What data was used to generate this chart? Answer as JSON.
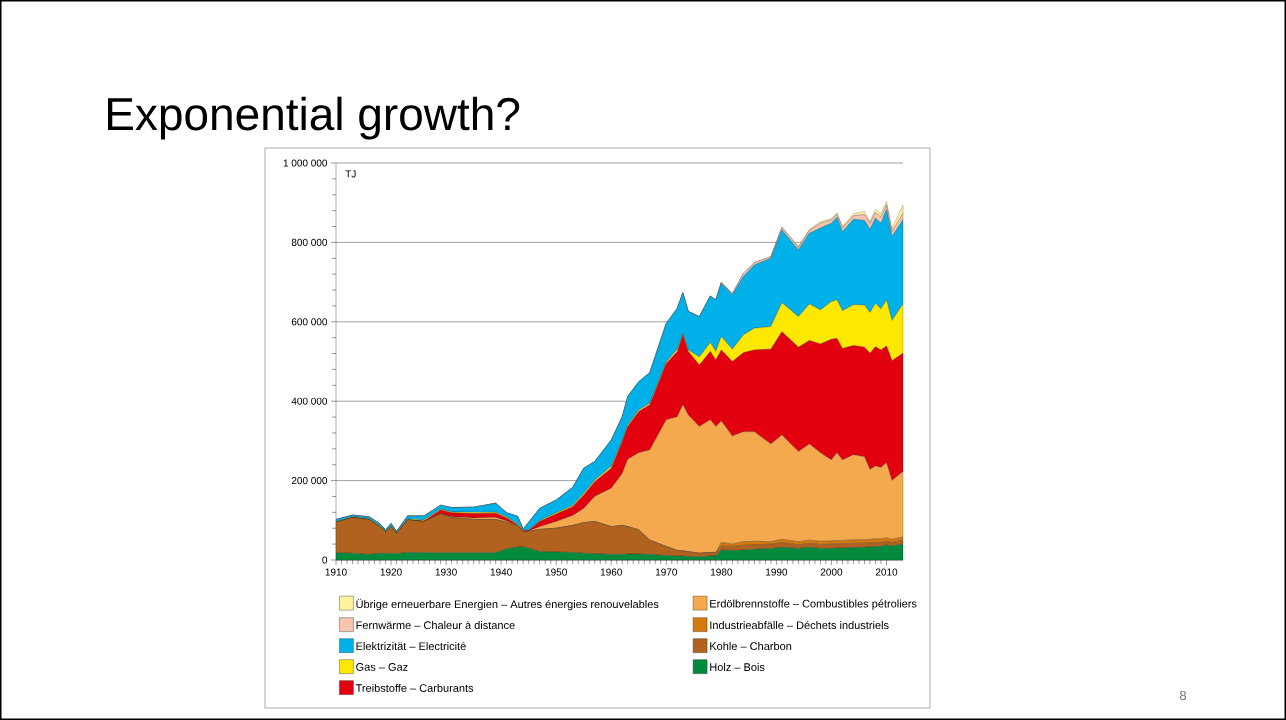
{
  "chart_data": {
    "type": "area",
    "title": "Exponential growth?",
    "ylabel": "TJ",
    "stacked": true,
    "grid": "y",
    "legend": "bottom",
    "annotations": [
      "8"
    ],
    "xlim": [
      1910,
      2013
    ],
    "ylim": [
      0,
      1000000
    ],
    "xticks": [
      1910,
      1920,
      1930,
      1940,
      1950,
      1960,
      1970,
      1980,
      1990,
      2000,
      2010
    ],
    "yticks": [
      0,
      {
        "value": 200000,
        "label": "200 000"
      },
      {
        "value": 400000,
        "label": "400 000"
      },
      {
        "value": 600000,
        "label": "600 000"
      },
      {
        "value": 800000,
        "label": "800 000"
      },
      {
        "value": 1000000,
        "label": "1 000 000"
      }
    ],
    "x": [
      1910,
      1913,
      1916,
      1918,
      1919,
      1920,
      1921,
      1923,
      1926,
      1929,
      1931,
      1935,
      1939,
      1941,
      1943,
      1944,
      1945,
      1947,
      1950,
      1953,
      1955,
      1957,
      1960,
      1962,
      1963,
      1965,
      1967,
      1970,
      1972,
      1973,
      1974,
      1976,
      1978,
      1979,
      1980,
      1982,
      1984,
      1986,
      1989,
      1991,
      1994,
      1996,
      1998,
      2000,
      2001,
      2002,
      2004,
      2006,
      2007,
      2008,
      2009,
      2010,
      2011,
      2013
    ],
    "series": [
      {
        "name": "Holz – Bois",
        "color": "#008a3c",
        "values": [
          18000,
          17000,
          14000,
          17000,
          16000,
          17000,
          16000,
          19000,
          18000,
          18000,
          18000,
          18000,
          18000,
          28000,
          33000,
          33000,
          30000,
          21000,
          20000,
          19000,
          17000,
          16000,
          14000,
          14000,
          15000,
          15000,
          14000,
          11000,
          10000,
          10000,
          9000,
          8000,
          10000,
          10000,
          25000,
          24000,
          25000,
          27000,
          29000,
          32000,
          29000,
          32000,
          29000,
          29000,
          30000,
          30000,
          31000,
          32000,
          33000,
          34000,
          34000,
          38000,
          35000,
          40000
        ]
      },
      {
        "name": "Kohle – Charbon",
        "color": "#b0621e",
        "values": [
          77000,
          90000,
          88000,
          67000,
          54000,
          67000,
          51000,
          82000,
          79000,
          99000,
          89000,
          84000,
          84000,
          67000,
          52000,
          38000,
          42000,
          56000,
          60000,
          68000,
          77000,
          81000,
          70000,
          73000,
          69000,
          61000,
          36000,
          23000,
          14000,
          13000,
          12000,
          9000,
          9000,
          9000,
          10000,
          10000,
          12000,
          11000,
          11000,
          12000,
          9000,
          10000,
          10000,
          11000,
          11000,
          11000,
          11000,
          10000,
          10000,
          10000,
          10000,
          9000,
          9000,
          10000
        ]
      },
      {
        "name": "Industrieabfälle – Déchets industriels",
        "color": "#d4790e",
        "values": [
          0,
          0,
          0,
          0,
          0,
          0,
          0,
          0,
          0,
          0,
          0,
          0,
          0,
          0,
          0,
          0,
          0,
          0,
          0,
          0,
          0,
          0,
          0,
          0,
          0,
          0,
          0,
          0,
          0,
          0,
          0,
          0,
          0,
          0,
          9000,
          6000,
          9000,
          9000,
          6000,
          8000,
          8000,
          8000,
          8000,
          8000,
          8000,
          8000,
          9000,
          9000,
          9000,
          9000,
          9000,
          9000,
          8000,
          8000
        ]
      },
      {
        "name": "Erdölbrennstoffe – Combustibles pétroliers",
        "color": "#f4a94e",
        "values": [
          0,
          0,
          0,
          0,
          0,
          0,
          0,
          0,
          0,
          0,
          2000,
          4000,
          5000,
          3000,
          1000,
          1000,
          1000,
          7000,
          17000,
          25000,
          36000,
          63000,
          97000,
          131000,
          170000,
          194000,
          227000,
          319000,
          337000,
          368000,
          344000,
          319000,
          334000,
          317000,
          306000,
          272000,
          277000,
          276000,
          246000,
          263000,
          227000,
          242000,
          223000,
          204000,
          221000,
          203000,
          214000,
          209000,
          176000,
          184000,
          180000,
          189000,
          148000,
          165000
        ]
      },
      {
        "name": "Treibstoffe – Carburants",
        "color": "#e2000f",
        "values": [
          0,
          0,
          0,
          0,
          0,
          0,
          0,
          0,
          1000,
          9000,
          10000,
          11000,
          11000,
          8000,
          2000,
          2000,
          1000,
          13000,
          19000,
          22000,
          34000,
          37000,
          50000,
          80000,
          82000,
          104000,
          114000,
          142000,
          164000,
          176000,
          160000,
          155000,
          172000,
          168000,
          179000,
          188000,
          199000,
          206000,
          239000,
          260000,
          263000,
          261000,
          274000,
          304000,
          288000,
          281000,
          275000,
          276000,
          293000,
          300000,
          296000,
          294000,
          302000,
          298000
        ]
      },
      {
        "name": "Gas – Gaz",
        "color": "#ffe800",
        "values": [
          2000,
          2000,
          2000,
          2000,
          2000,
          2000,
          2000,
          2000,
          3000,
          2000,
          2000,
          3000,
          2000,
          2000,
          2000,
          2000,
          1000,
          2000,
          3000,
          3000,
          4000,
          4000,
          5000,
          3000,
          4000,
          4000,
          4000,
          4000,
          6000,
          3000,
          4000,
          20000,
          23000,
          21000,
          34000,
          31000,
          45000,
          55000,
          57000,
          73000,
          77000,
          92000,
          86000,
          95000,
          97000,
          95000,
          103000,
          106000,
          102000,
          110000,
          103000,
          116000,
          101000,
          124000
        ]
      },
      {
        "name": "Elektrizität – Electricité",
        "color": "#00b0e8",
        "values": [
          5000,
          4000,
          5000,
          5000,
          4000,
          6000,
          3000,
          8000,
          10000,
          10000,
          11000,
          13000,
          23000,
          11000,
          20000,
          2000,
          20000,
          31000,
          32000,
          46000,
          63000,
          47000,
          66000,
          60000,
          72000,
          71000,
          77000,
          97000,
          103000,
          103000,
          97000,
          102000,
          117000,
          130000,
          134000,
          137000,
          147000,
          159000,
          172000,
          183000,
          168000,
          178000,
          206000,
          197000,
          208000,
          199000,
          215000,
          213000,
          210000,
          214000,
          216000,
          227000,
          212000,
          212000
        ]
      },
      {
        "name": "Fernwärme – Chaleur à distance",
        "color": "#f7c4b0",
        "values": [
          0,
          0,
          0,
          0,
          0,
          0,
          0,
          0,
          0,
          0,
          0,
          0,
          0,
          0,
          0,
          0,
          0,
          0,
          0,
          0,
          0,
          0,
          0,
          0,
          0,
          0,
          0,
          0,
          0,
          0,
          0,
          0,
          0,
          0,
          3000,
          3000,
          8000,
          6000,
          4000,
          6000,
          6000,
          7000,
          12000,
          8000,
          8000,
          9000,
          9000,
          15000,
          15000,
          14000,
          15000,
          12000,
          12000,
          16000
        ]
      },
      {
        "name": "Übrige erneuerbare Energien – Autres énergies renouvelables",
        "color": "#fff3a0",
        "values": [
          0,
          0,
          0,
          0,
          0,
          0,
          0,
          0,
          0,
          0,
          0,
          0,
          0,
          0,
          0,
          0,
          0,
          0,
          0,
          0,
          0,
          0,
          0,
          0,
          0,
          0,
          0,
          0,
          0,
          0,
          0,
          0,
          0,
          0,
          0,
          0,
          0,
          0,
          0,
          2000,
          3000,
          3000,
          4000,
          4000,
          3000,
          4000,
          5000,
          8000,
          4000,
          8000,
          9000,
          9000,
          8000,
          21000
        ]
      }
    ]
  }
}
